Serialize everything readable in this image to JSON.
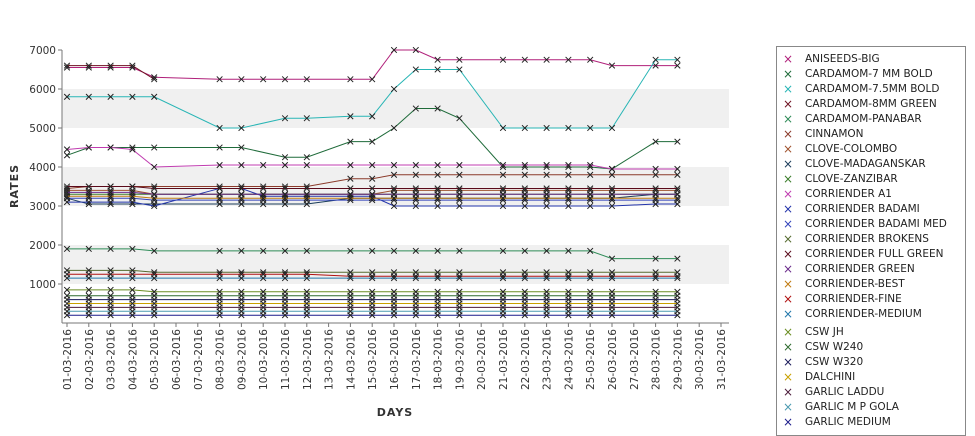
{
  "chart_data": {
    "type": "line",
    "xlabel": "DAYS",
    "ylabel": "RATES",
    "ylim": [
      0,
      7000
    ],
    "yticks": [
      1000,
      2000,
      3000,
      4000,
      5000,
      6000,
      7000
    ],
    "grid": "alternating horizontal bands",
    "legend": "right",
    "categories": [
      "01-03-2016",
      "02-03-2016",
      "03-03-2016",
      "04-03-2016",
      "05-03-2016",
      "06-03-2016",
      "07-03-2016",
      "08-03-2016",
      "09-03-2016",
      "10-03-2016",
      "11-03-2016",
      "12-03-2016",
      "13-03-2016",
      "14-03-2016",
      "15-03-2016",
      "16-03-2016",
      "17-03-2016",
      "18-03-2016",
      "19-03-2016",
      "20-03-2016",
      "21-03-2016",
      "22-03-2016",
      "23-03-2016",
      "24-03-2016",
      "25-03-2016",
      "26-03-2016",
      "27-03-2016",
      "28-03-2016",
      "29-03-2016",
      "30-03-2016",
      "31-03-2016"
    ],
    "series": [
      {
        "name": "ANISEEDS-BIG",
        "color": "#b0207a",
        "values": [
          6550,
          6550,
          6550,
          6550,
          6300,
          null,
          null,
          6250,
          6250,
          6250,
          6250,
          6250,
          null,
          6250,
          6250,
          7000,
          7000,
          6750,
          6750,
          null,
          6750,
          6750,
          6750,
          6750,
          6750,
          6600,
          null,
          6600,
          6600,
          null,
          null
        ]
      },
      {
        "name": "CARDAMOM-7 MM BOLD",
        "color": "#1f6b3a",
        "values": [
          4300,
          4500,
          4500,
          4500,
          4500,
          null,
          null,
          4500,
          4500,
          null,
          4250,
          4250,
          null,
          4650,
          4650,
          5000,
          5500,
          5500,
          5250,
          null,
          4000,
          4000,
          4000,
          4000,
          4000,
          3950,
          null,
          4650,
          4650,
          null,
          null
        ]
      },
      {
        "name": "CARDAMOM-7.5MM BOLD",
        "color": "#28b5b5",
        "values": [
          5800,
          5800,
          5800,
          5800,
          5800,
          null,
          null,
          5000,
          5000,
          null,
          5250,
          5250,
          null,
          5300,
          5300,
          6000,
          6500,
          6500,
          6500,
          null,
          5000,
          5000,
          5000,
          5000,
          5000,
          5000,
          null,
          6750,
          6750,
          null,
          null
        ]
      },
      {
        "name": "CARDAMOM-8MM GREEN",
        "color": "#6e1020",
        "values": [
          6600,
          6600,
          6600,
          6600,
          6250,
          null,
          null,
          null,
          null,
          null,
          null,
          null,
          null,
          null,
          null,
          null,
          null,
          null,
          null,
          null,
          null,
          null,
          null,
          null,
          null,
          null,
          null,
          null,
          null,
          null,
          null
        ]
      },
      {
        "name": "CARDAMOM-PANABAR",
        "color": "#2e8b57",
        "values": [
          1900,
          1900,
          1900,
          1900,
          1850,
          null,
          null,
          1850,
          1850,
          1850,
          1850,
          1850,
          null,
          1850,
          1850,
          1850,
          1850,
          1850,
          1850,
          null,
          1850,
          1850,
          1850,
          1850,
          1850,
          1650,
          null,
          1650,
          1650,
          null,
          null
        ]
      },
      {
        "name": "CINNAMON",
        "color": "#8b3a2a",
        "values": [
          3450,
          3500,
          3500,
          3500,
          3500,
          null,
          null,
          3500,
          3500,
          3500,
          3500,
          3500,
          null,
          3700,
          3700,
          3800,
          3800,
          3800,
          3800,
          null,
          3800,
          3800,
          3800,
          3800,
          3800,
          3800,
          null,
          3800,
          3800,
          null,
          null
        ]
      },
      {
        "name": "CLOVE-COLOMBO",
        "color": "#a0522d",
        "values": [
          3400,
          3400,
          3400,
          3400,
          3300,
          null,
          null,
          3300,
          3300,
          3300,
          3300,
          3300,
          null,
          3300,
          3300,
          3400,
          3400,
          3400,
          3400,
          null,
          3400,
          3400,
          3400,
          3400,
          3400,
          3400,
          null,
          3400,
          3400,
          null,
          null
        ]
      },
      {
        "name": "CLOVE-MADAGANSKAR",
        "color": "#1a3c5a",
        "values": [
          3200,
          3050,
          3050,
          3050,
          3050,
          null,
          null,
          3050,
          3050,
          3050,
          3050,
          3050,
          null,
          3200,
          3200,
          3200,
          3200,
          3200,
          3200,
          null,
          3200,
          3200,
          3200,
          3200,
          3200,
          3200,
          null,
          3300,
          3300,
          null,
          null
        ]
      },
      {
        "name": "CLOVE-ZANZIBAR",
        "color": "#3a7d2a",
        "values": [
          3300,
          3300,
          3300,
          3300,
          3300,
          null,
          null,
          3300,
          3300,
          3300,
          3300,
          3300,
          null,
          3300,
          3300,
          3300,
          3300,
          3300,
          3300,
          null,
          3300,
          3300,
          3300,
          3300,
          3300,
          3300,
          null,
          3300,
          3300,
          null,
          null
        ]
      },
      {
        "name": "CORRIENDER A1",
        "color": "#c03cb0",
        "values": [
          4450,
          4500,
          4500,
          4450,
          4000,
          null,
          null,
          4050,
          4050,
          4050,
          4050,
          4050,
          null,
          4050,
          4050,
          4050,
          4050,
          4050,
          4050,
          null,
          4050,
          4050,
          4050,
          4050,
          4050,
          3950,
          null,
          3950,
          3950,
          null,
          null
        ]
      },
      {
        "name": "CORRIENDER BADAMI",
        "color": "#2233aa",
        "values": [
          3100,
          3100,
          3100,
          3100,
          3000,
          null,
          null,
          3450,
          3450,
          3250,
          3250,
          3250,
          null,
          3250,
          3250,
          3000,
          3000,
          3000,
          3000,
          null,
          3000,
          3000,
          3000,
          3000,
          3000,
          3000,
          null,
          3050,
          3050,
          null,
          null
        ]
      },
      {
        "name": "CORRIENDER BADAMI MED",
        "color": "#3344bb",
        "values": [
          3200,
          3200,
          3200,
          3200,
          3150,
          null,
          null,
          3150,
          3150,
          3150,
          3150,
          3150,
          null,
          3150,
          3150,
          3150,
          3150,
          3150,
          3150,
          null,
          3150,
          3150,
          3150,
          3150,
          3150,
          3150,
          null,
          3150,
          3150,
          null,
          null
        ]
      },
      {
        "name": "CORRIENDER BROKENS",
        "color": "#556b2f",
        "values": [
          1350,
          1350,
          1350,
          1350,
          1300,
          null,
          null,
          1300,
          1300,
          1300,
          1300,
          1300,
          null,
          1300,
          1300,
          1300,
          1300,
          1300,
          1300,
          null,
          1300,
          1300,
          1300,
          1300,
          1300,
          1300,
          null,
          1300,
          1300,
          null,
          null
        ]
      },
      {
        "name": "CORRIENDER FULL GREEN",
        "color": "#5a0a1a",
        "values": [
          3500,
          3500,
          3500,
          3500,
          3450,
          null,
          null,
          3450,
          3450,
          3450,
          3450,
          3450,
          null,
          3450,
          3450,
          3450,
          3450,
          3450,
          3450,
          null,
          3450,
          3450,
          3450,
          3450,
          3450,
          3450,
          null,
          3450,
          3450,
          null,
          null
        ]
      },
      {
        "name": "CORRIENDER GREEN",
        "color": "#6a2a8a",
        "values": [
          3350,
          3350,
          3350,
          3350,
          3300,
          null,
          null,
          3300,
          3300,
          3300,
          3300,
          3300,
          null,
          3300,
          3300,
          3300,
          3300,
          3300,
          3300,
          null,
          3300,
          3300,
          3300,
          3300,
          3300,
          3300,
          null,
          3300,
          3300,
          null,
          null
        ]
      },
      {
        "name": "CORRIENDER-BEST",
        "color": "#c07a10",
        "values": [
          3250,
          3250,
          3250,
          3250,
          3200,
          null,
          null,
          3200,
          3200,
          3200,
          3200,
          3200,
          null,
          3200,
          3200,
          3200,
          3200,
          3200,
          3200,
          null,
          3200,
          3200,
          3200,
          3200,
          3200,
          3200,
          null,
          3200,
          3200,
          null,
          null
        ]
      },
      {
        "name": "CORRIENDER-FINE",
        "color": "#b01010",
        "values": [
          1250,
          1250,
          1250,
          1250,
          1250,
          null,
          null,
          1250,
          1250,
          1250,
          1250,
          1250,
          null,
          1200,
          1200,
          1200,
          1200,
          1200,
          1200,
          null,
          1200,
          1200,
          1200,
          1200,
          1200,
          1200,
          null,
          1200,
          1200,
          null,
          null
        ]
      },
      {
        "name": "CORRIENDER-MEDIUM",
        "color": "#2277aa",
        "values": [
          1150,
          1150,
          1150,
          1150,
          1150,
          null,
          null,
          1150,
          1150,
          1150,
          1150,
          1150,
          null,
          1150,
          1150,
          1150,
          1150,
          1150,
          1150,
          null,
          1150,
          1150,
          1150,
          1150,
          1150,
          1150,
          null,
          1150,
          1150,
          null,
          null
        ]
      },
      {
        "name": "CSW JH",
        "color": "#6b8e23",
        "values": [
          850,
          850,
          850,
          850,
          800,
          null,
          null,
          800,
          800,
          800,
          800,
          800,
          null,
          800,
          800,
          800,
          800,
          800,
          800,
          null,
          800,
          800,
          800,
          800,
          800,
          800,
          null,
          800,
          800,
          null,
          null
        ]
      },
      {
        "name": "CSW W240",
        "color": "#2f6b2f",
        "values": [
          700,
          700,
          700,
          700,
          700,
          null,
          null,
          700,
          700,
          700,
          700,
          700,
          null,
          700,
          700,
          700,
          700,
          700,
          700,
          null,
          700,
          700,
          700,
          700,
          700,
          700,
          null,
          700,
          700,
          null,
          null
        ]
      },
      {
        "name": "CSW W320",
        "color": "#1a1a5a",
        "values": [
          600,
          600,
          600,
          600,
          600,
          null,
          null,
          600,
          600,
          600,
          600,
          600,
          null,
          600,
          600,
          600,
          600,
          600,
          600,
          null,
          600,
          600,
          600,
          600,
          600,
          600,
          null,
          600,
          600,
          null,
          null
        ]
      },
      {
        "name": "DALCHINI",
        "color": "#c8a000",
        "values": [
          500,
          500,
          500,
          500,
          500,
          null,
          null,
          500,
          500,
          500,
          500,
          500,
          null,
          500,
          500,
          500,
          500,
          500,
          500,
          null,
          500,
          500,
          500,
          500,
          500,
          500,
          null,
          500,
          500,
          null,
          null
        ]
      },
      {
        "name": "GARLIC LADDU",
        "color": "#4a1a3a",
        "values": [
          400,
          400,
          400,
          400,
          400,
          null,
          null,
          400,
          400,
          400,
          400,
          400,
          null,
          400,
          400,
          400,
          400,
          400,
          400,
          null,
          400,
          400,
          400,
          400,
          400,
          400,
          null,
          400,
          400,
          null,
          null
        ]
      },
      {
        "name": "GARLIC M P GOLA",
        "color": "#4a9ab0",
        "values": [
          300,
          300,
          300,
          300,
          300,
          null,
          null,
          300,
          300,
          300,
          300,
          300,
          null,
          300,
          300,
          300,
          300,
          300,
          300,
          null,
          300,
          300,
          300,
          300,
          300,
          300,
          null,
          300,
          300,
          null,
          null
        ]
      },
      {
        "name": "GARLIC MEDIUM",
        "color": "#1a1a8a",
        "values": [
          200,
          200,
          200,
          200,
          200,
          null,
          null,
          200,
          200,
          200,
          200,
          200,
          null,
          200,
          200,
          200,
          200,
          200,
          200,
          null,
          200,
          200,
          200,
          200,
          200,
          200,
          null,
          200,
          200,
          null,
          null
        ]
      }
    ]
  }
}
